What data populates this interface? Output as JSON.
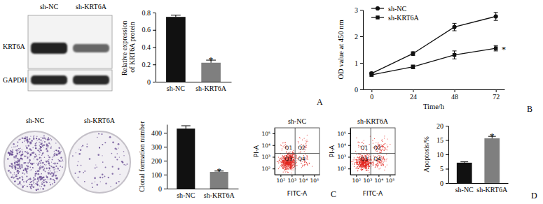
{
  "panel_labels": [
    "A",
    "B",
    "C",
    "D"
  ],
  "blot": {
    "lanes": [
      "sh-NC",
      "sh-KRT6A"
    ],
    "proteins": [
      "KRT6A",
      "GAPDH"
    ]
  },
  "colony_plates": {
    "labels": [
      "sh-NC",
      "sh-KRT6A"
    ]
  },
  "chart_data": [
    {
      "type": "bar",
      "y_label": "Relative expression of KRT6A protein",
      "categories": [
        "sh-NC",
        "sh-KRT6A"
      ],
      "values": [
        0.75,
        0.22
      ],
      "errors": [
        0.02,
        0.03
      ],
      "colors": [
        "#111111",
        "#7f7f7f"
      ],
      "ylim": [
        0,
        0.8
      ],
      "yticks": [
        0,
        0.2,
        0.4,
        0.6,
        0.8
      ],
      "annotations": [
        {
          "text": "*",
          "category": 1
        }
      ]
    },
    {
      "type": "line",
      "x_label": "Time/h",
      "y_label": "OD value at 450 nm",
      "x": [
        0,
        24,
        48,
        72
      ],
      "xlim": [
        -5,
        77
      ],
      "xticks": [
        0,
        24,
        48,
        72
      ],
      "ylim": [
        0,
        3
      ],
      "yticks": [
        0,
        1,
        2,
        3
      ],
      "legend": "upper left",
      "series": [
        {
          "name": "sh-NC",
          "color": "#111111",
          "marker": "circle",
          "values": [
            0.6,
            1.35,
            2.35,
            2.75
          ],
          "errors": [
            0.05,
            0.07,
            0.14,
            0.15
          ]
        },
        {
          "name": "sh-KRT6A",
          "color": "#111111",
          "marker": "square",
          "values": [
            0.55,
            0.85,
            1.3,
            1.55
          ],
          "errors": [
            0.05,
            0.07,
            0.15,
            0.1
          ]
        }
      ],
      "annotations": [
        {
          "text": "*",
          "series": 1
        }
      ]
    },
    {
      "type": "bar",
      "y_label": "Clonal formation number",
      "categories": [
        "sh-NC",
        "sh-KRT6A"
      ],
      "values": [
        430,
        120
      ],
      "errors": [
        20,
        6
      ],
      "colors": [
        "#111111",
        "#7f7f7f"
      ],
      "ylim": [
        0,
        460
      ],
      "yticks": [
        0,
        100,
        200,
        300,
        400
      ],
      "annotations": [
        {
          "text": "*",
          "category": 1
        }
      ]
    },
    {
      "type": "flow",
      "title": "sh-NC",
      "x_label": "FITC-A",
      "y_label": "PI-A",
      "log": true,
      "xlim": [
        30,
        300000
      ],
      "ylim": [
        30,
        300000
      ],
      "xticks": [
        {
          "value": 100,
          "label": "10²"
        },
        {
          "value": 1000,
          "label": "10³"
        },
        {
          "value": 10000,
          "label": "10⁴"
        },
        {
          "value": 100000,
          "label": "10⁵"
        }
      ],
      "yticks": [
        {
          "value": 100,
          "label": "10²"
        },
        {
          "value": 1000,
          "label": "10³"
        },
        {
          "value": 10000,
          "label": "10⁴"
        },
        {
          "value": 100000,
          "label": "10⁵"
        }
      ],
      "gate": {
        "x": 2000,
        "y": 2000
      },
      "quadrant_labels": [
        "Q1",
        "Q2",
        "Q3",
        "Q4"
      ]
    },
    {
      "type": "flow",
      "title": "sh-KRT6A",
      "x_label": "FITC-A",
      "y_label": "PI-A",
      "log": true,
      "xlim": [
        30,
        300000
      ],
      "ylim": [
        30,
        300000
      ],
      "xticks": [
        {
          "value": 100,
          "label": "10²"
        },
        {
          "value": 1000,
          "label": "10³"
        },
        {
          "value": 10000,
          "label": "10⁴"
        },
        {
          "value": 100000,
          "label": "10⁵"
        }
      ],
      "yticks": [
        {
          "value": 100,
          "label": "10²"
        },
        {
          "value": 1000,
          "label": "10³"
        },
        {
          "value": 10000,
          "label": "10⁴"
        },
        {
          "value": 100000,
          "label": "10⁵"
        }
      ],
      "gate": {
        "x": 2000,
        "y": 2000
      },
      "quadrant_labels": [
        "Q1",
        "Q2",
        "Q3",
        "Q4"
      ]
    },
    {
      "type": "bar",
      "y_label": "Apoptosis/%",
      "categories": [
        "sh-NC",
        "sh-KRT6A"
      ],
      "values": [
        7.1,
        15.6
      ],
      "errors": [
        0.3,
        0.7
      ],
      "colors": [
        "#111111",
        "#7f7f7f"
      ],
      "ylim": [
        0,
        20
      ],
      "yticks": [
        0,
        5,
        10,
        15,
        20
      ],
      "annotations": [
        {
          "text": "*",
          "category": 1
        }
      ]
    }
  ]
}
